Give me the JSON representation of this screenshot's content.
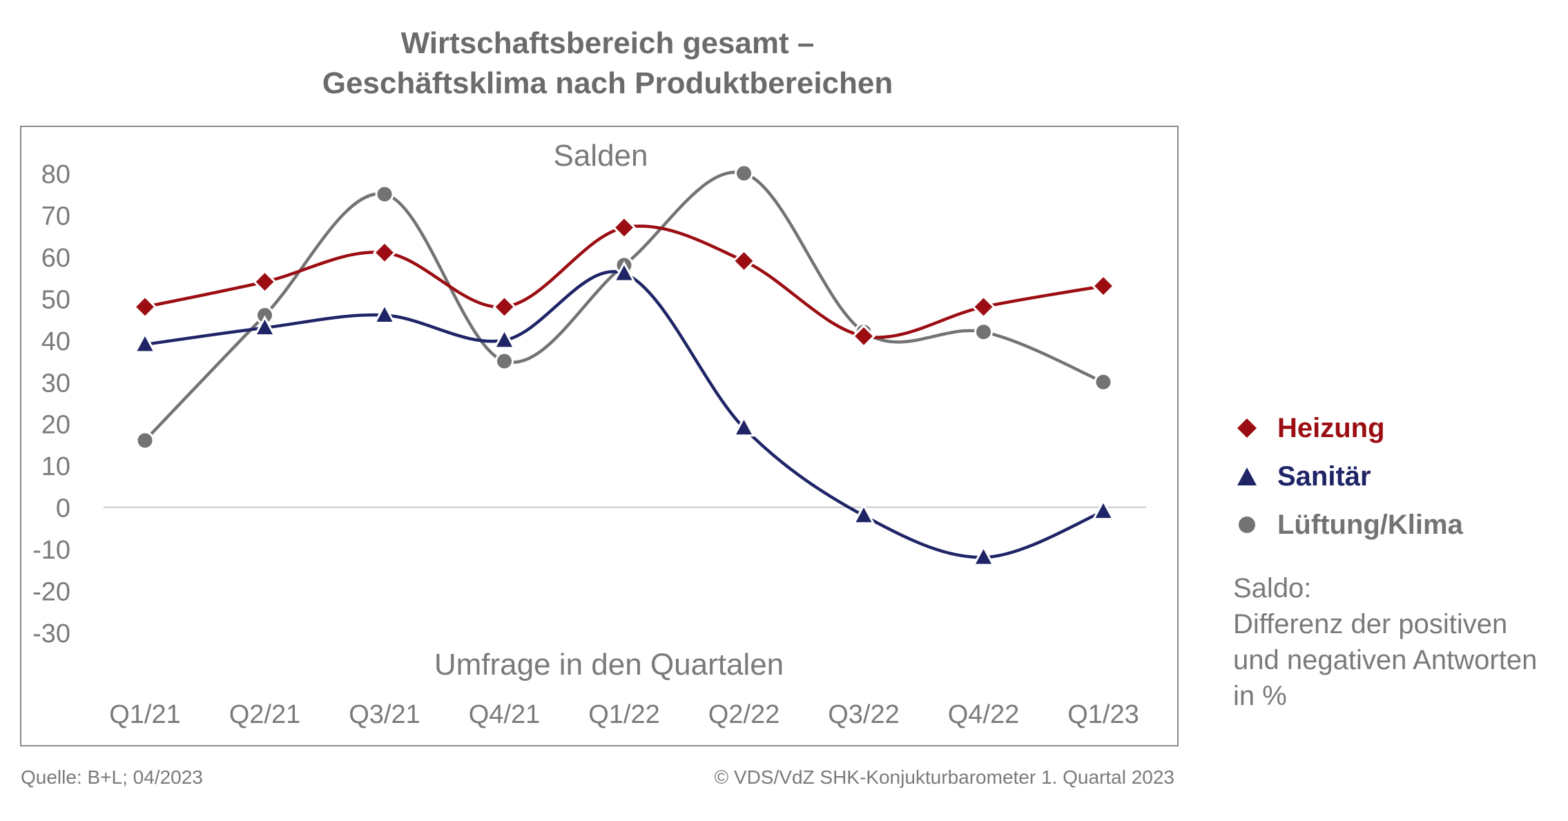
{
  "title_line1": "Wirtschaftsbereich gesamt –",
  "title_line2": "Geschäftsklima nach Produktbereichen",
  "footer_left": "Quelle: B+L; 04/2023",
  "footer_right": "© VDS/VdZ SHK-Konjukturbarometer 1. Quartal 2023",
  "note": {
    "line1": "Saldo:",
    "line2": "Differenz der positiven",
    "line3": "und negativen Antworten",
    "line4": "in %"
  },
  "colors": {
    "heizung": "#9b0d12",
    "sanitaer": "#1e2466",
    "lueftung": "#737373",
    "axis_text": "#7a7a7a",
    "frame": "#8a8a8a",
    "zero_line": "#c8c8c8"
  },
  "chart_data": {
    "type": "line",
    "title": "Salden",
    "xlabel": "Umfrage in den Quartalen",
    "ylabel": "",
    "categories": [
      "Q1/21",
      "Q2/21",
      "Q3/21",
      "Q4/21",
      "Q1/22",
      "Q2/22",
      "Q3/22",
      "Q4/22",
      "Q1/23"
    ],
    "ylim": [
      -30,
      80
    ],
    "yticks": [
      80,
      70,
      60,
      50,
      40,
      30,
      20,
      10,
      0,
      -10,
      -20,
      -30
    ],
    "grid": false,
    "smooth": true,
    "legend_position": "right",
    "series": [
      {
        "name": "Heizung",
        "marker": "diamond",
        "values": [
          48,
          54,
          61,
          48,
          67,
          59,
          41,
          48,
          53
        ]
      },
      {
        "name": "Sanitär",
        "marker": "triangle",
        "values": [
          39,
          43,
          46,
          40,
          56,
          19,
          -2,
          -12,
          -1
        ]
      },
      {
        "name": "Lüftung/Klima",
        "marker": "circle",
        "values": [
          16,
          46,
          75,
          35,
          58,
          80,
          42,
          42,
          30
        ]
      }
    ]
  }
}
